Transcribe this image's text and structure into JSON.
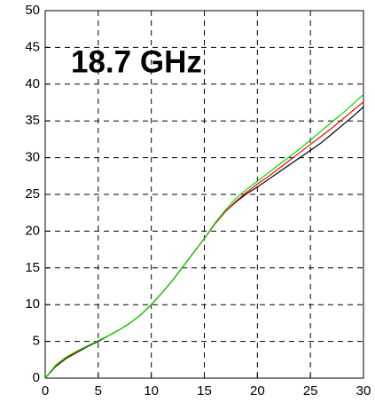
{
  "chart_data": {
    "type": "line",
    "annotation": "18.7 GHz",
    "x": [
      0,
      1,
      2,
      3,
      4,
      5,
      6,
      7,
      8,
      9,
      10,
      11,
      12,
      13,
      14,
      15,
      16,
      17,
      18,
      19,
      20,
      21,
      22,
      23,
      24,
      25,
      26,
      27,
      28,
      29,
      30
    ],
    "series": [
      {
        "color": "#000000",
        "values": [
          0,
          1.6,
          2.7,
          3.5,
          4.3,
          5.0,
          5.8,
          6.6,
          7.5,
          8.6,
          10.0,
          11.6,
          13.3,
          15.2,
          17.1,
          19.0,
          21.0,
          22.7,
          24.0,
          25.1,
          26.0,
          27.0,
          28.0,
          29.0,
          30.0,
          31.0,
          32.0,
          33.2,
          34.4,
          35.6,
          36.9
        ]
      },
      {
        "color": "#ff0000",
        "values": [
          0,
          1.7,
          2.8,
          3.6,
          4.4,
          5.1,
          5.8,
          6.6,
          7.5,
          8.6,
          10.0,
          11.6,
          13.3,
          15.2,
          17.1,
          19.0,
          21.0,
          22.7,
          24.1,
          25.3,
          26.4,
          27.4,
          28.5,
          29.6,
          30.7,
          31.8,
          32.9,
          34.0,
          35.2,
          36.4,
          37.6
        ]
      },
      {
        "color": "#00dd00",
        "values": [
          0,
          1.8,
          2.9,
          3.7,
          4.4,
          5.1,
          5.8,
          6.6,
          7.5,
          8.6,
          10.0,
          11.6,
          13.3,
          15.2,
          17.1,
          19.0,
          21.1,
          22.9,
          24.5,
          25.7,
          26.8,
          27.9,
          29.0,
          30.1,
          31.2,
          32.4,
          33.6,
          34.8,
          36.0,
          37.3,
          38.6
        ]
      }
    ],
    "xlim": [
      0,
      30
    ],
    "xticks": [
      0,
      5,
      10,
      15,
      20,
      25,
      30
    ],
    "ylim": [
      0,
      50
    ],
    "yticks": [
      0,
      5,
      10,
      15,
      20,
      25,
      30,
      35,
      40,
      45,
      50
    ],
    "grid": true
  }
}
